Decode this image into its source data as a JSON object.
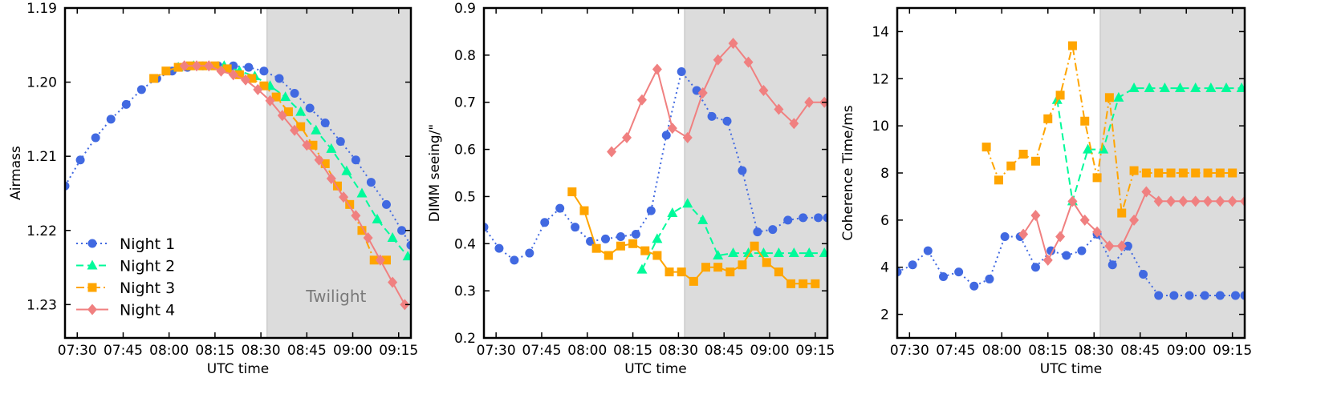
{
  "colors": {
    "night1": "#4169e1",
    "night2": "#00fa9a",
    "night3": "#ffa500",
    "night4": "#f08080",
    "twilight": "#dcdcdc"
  },
  "chart_data": [
    {
      "type": "line",
      "xlabel": "UTC time",
      "ylabel": "Airmass",
      "x_unit": "minutes of UTC time",
      "xlim": [
        "07:26",
        "09:19"
      ],
      "ylim": [
        1.19,
        1.2345
      ],
      "y_inverted": true,
      "xticks": [
        "07:30",
        "07:45",
        "08:00",
        "08:15",
        "08:30",
        "08:45",
        "09:00",
        "09:15"
      ],
      "yticks": [
        "1.19",
        "1.20",
        "1.21",
        "1.22",
        "1.23"
      ],
      "shaded_region": {
        "from": "08:32",
        "to": "09:19",
        "label": "Twilight"
      },
      "legend": {
        "placement": "lower-left"
      },
      "series": [
        {
          "name": "Night 1",
          "style": "dotted",
          "marker": "circle",
          "color": "#4169e1",
          "x": [
            "07:26",
            "07:31",
            "07:36",
            "07:41",
            "07:46",
            "07:51",
            "07:56",
            "08:01",
            "08:06",
            "08:11",
            "08:16",
            "08:21",
            "08:26",
            "08:31",
            "08:36",
            "08:41",
            "08:46",
            "08:51",
            "08:56",
            "09:01",
            "09:06",
            "09:11",
            "09:16",
            "09:19"
          ],
          "y": [
            1.214,
            1.2105,
            1.2075,
            1.205,
            1.203,
            1.201,
            1.1995,
            1.1985,
            1.198,
            1.1978,
            1.1978,
            1.1978,
            1.198,
            1.1985,
            1.1995,
            1.2015,
            1.2035,
            1.2055,
            1.208,
            1.2105,
            1.2135,
            1.2165,
            1.22,
            1.222
          ]
        },
        {
          "name": "Night 2",
          "style": "dashed",
          "marker": "triangle",
          "color": "#00fa9a",
          "x": [
            "08:03",
            "08:08",
            "08:13",
            "08:18",
            "08:23",
            "08:28",
            "08:33",
            "08:38",
            "08:43",
            "08:48",
            "08:53",
            "08:58",
            "09:03",
            "09:08",
            "09:13",
            "09:18"
          ],
          "y": [
            1.198,
            1.1978,
            1.1978,
            1.1978,
            1.1985,
            1.1992,
            1.2005,
            1.202,
            1.204,
            1.2065,
            1.209,
            1.212,
            1.215,
            1.2185,
            1.221,
            1.2235
          ]
        },
        {
          "name": "Night 3",
          "style": "dashdot",
          "marker": "square",
          "color": "#ffa500",
          "x": [
            "07:55",
            "07:59",
            "08:03",
            "08:07",
            "08:11",
            "08:15",
            "08:19",
            "08:23",
            "08:27",
            "08:31",
            "08:35",
            "08:39",
            "08:43",
            "08:47",
            "08:51",
            "08:55",
            "08:59",
            "09:03",
            "09:07",
            "09:11"
          ],
          "y": [
            1.1995,
            1.1985,
            1.198,
            1.1978,
            1.1978,
            1.1978,
            1.1982,
            1.199,
            1.1995,
            1.2005,
            1.202,
            1.204,
            1.206,
            1.2085,
            1.211,
            1.214,
            1.2165,
            1.22,
            1.224,
            1.224
          ]
        },
        {
          "name": "Night 4",
          "style": "solid",
          "marker": "diamond",
          "color": "#f08080",
          "x": [
            "08:05",
            "08:09",
            "08:13",
            "08:17",
            "08:21",
            "08:25",
            "08:29",
            "08:33",
            "08:37",
            "08:41",
            "08:45",
            "08:49",
            "08:53",
            "08:57",
            "09:01",
            "09:05",
            "09:09",
            "09:13",
            "09:17"
          ],
          "y": [
            1.1978,
            1.1978,
            1.1978,
            1.1985,
            1.199,
            1.1997,
            1.201,
            1.2025,
            1.2045,
            1.2065,
            1.2085,
            1.2105,
            1.213,
            1.2155,
            1.218,
            1.221,
            1.224,
            1.227,
            1.23
          ]
        }
      ]
    },
    {
      "type": "line",
      "xlabel": "UTC time",
      "ylabel": "DIMM seeing/\"",
      "x_unit": "minutes of UTC time",
      "xlim": [
        "07:26",
        "09:19"
      ],
      "ylim": [
        0.2,
        0.9
      ],
      "xticks": [
        "07:30",
        "07:45",
        "08:00",
        "08:15",
        "08:30",
        "08:45",
        "09:00",
        "09:15"
      ],
      "yticks": [
        "0.2",
        "0.3",
        "0.4",
        "0.5",
        "0.6",
        "0.7",
        "0.8",
        "0.9"
      ],
      "shaded_region": {
        "from": "08:32",
        "to": "09:19"
      },
      "series": [
        {
          "name": "Night 1",
          "style": "dotted",
          "marker": "circle",
          "color": "#4169e1",
          "x": [
            "07:26",
            "07:31",
            "07:36",
            "07:41",
            "07:46",
            "07:51",
            "07:56",
            "08:01",
            "08:06",
            "08:11",
            "08:16",
            "08:21",
            "08:26",
            "08:31",
            "08:36",
            "08:41",
            "08:46",
            "08:51",
            "08:56",
            "09:01",
            "09:06",
            "09:11",
            "09:16",
            "09:19"
          ],
          "y": [
            0.435,
            0.39,
            0.365,
            0.38,
            0.445,
            0.475,
            0.435,
            0.405,
            0.41,
            0.415,
            0.42,
            0.47,
            0.63,
            0.765,
            0.725,
            0.67,
            0.66,
            0.555,
            0.425,
            0.43,
            0.45,
            0.455,
            0.455,
            0.455
          ]
        },
        {
          "name": "Night 2",
          "style": "dashed",
          "marker": "triangle",
          "color": "#00fa9a",
          "x": [
            "08:18",
            "08:23",
            "08:28",
            "08:33",
            "08:38",
            "08:43",
            "08:48",
            "08:53",
            "08:58",
            "09:03",
            "09:08",
            "09:13",
            "09:18"
          ],
          "y": [
            0.345,
            0.41,
            0.465,
            0.485,
            0.45,
            0.375,
            0.38,
            0.38,
            0.38,
            0.38,
            0.38,
            0.38,
            0.38
          ]
        },
        {
          "name": "Night 3",
          "style": "solid",
          "marker": "square",
          "color": "#ffa500",
          "x": [
            "07:55",
            "07:59",
            "08:03",
            "08:07",
            "08:11",
            "08:15",
            "08:19",
            "08:23",
            "08:27",
            "08:31",
            "08:35",
            "08:39",
            "08:43",
            "08:47",
            "08:51",
            "08:55",
            "08:59",
            "09:03",
            "09:07",
            "09:11",
            "09:15"
          ],
          "y": [
            0.51,
            0.47,
            0.39,
            0.375,
            0.395,
            0.4,
            0.385,
            0.375,
            0.34,
            0.34,
            0.32,
            0.35,
            0.35,
            0.34,
            0.355,
            0.395,
            0.36,
            0.34,
            0.315,
            0.315,
            0.315
          ]
        },
        {
          "name": "Night 4",
          "style": "solid",
          "marker": "diamond",
          "color": "#f08080",
          "x": [
            "08:08",
            "08:13",
            "08:18",
            "08:23",
            "08:28",
            "08:33",
            "08:38",
            "08:43",
            "08:48",
            "08:53",
            "08:58",
            "09:03",
            "09:08",
            "09:13",
            "09:18"
          ],
          "y": [
            0.595,
            0.625,
            0.705,
            0.77,
            0.645,
            0.625,
            0.72,
            0.79,
            0.825,
            0.785,
            0.725,
            0.685,
            0.655,
            0.7,
            0.7
          ]
        }
      ]
    },
    {
      "type": "line",
      "xlabel": "UTC time",
      "ylabel": "Coherence Time/ms",
      "x_unit": "minutes of UTC time",
      "xlim": [
        "07:26",
        "09:19"
      ],
      "ylim": [
        1.0,
        15.0
      ],
      "xticks": [
        "07:30",
        "07:45",
        "08:00",
        "08:15",
        "08:30",
        "08:45",
        "09:00",
        "09:15"
      ],
      "yticks": [
        "2",
        "4",
        "6",
        "8",
        "10",
        "12",
        "14"
      ],
      "shaded_region": {
        "from": "08:32",
        "to": "09:19"
      },
      "series": [
        {
          "name": "Night 1",
          "style": "dotted",
          "marker": "circle",
          "color": "#4169e1",
          "x": [
            "07:26",
            "07:31",
            "07:36",
            "07:41",
            "07:46",
            "07:51",
            "07:56",
            "08:01",
            "08:06",
            "08:11",
            "08:16",
            "08:21",
            "08:26",
            "08:31",
            "08:36",
            "08:41",
            "08:46",
            "08:51",
            "08:56",
            "09:01",
            "09:06",
            "09:11",
            "09:16",
            "09:19"
          ],
          "y": [
            3.8,
            4.1,
            4.7,
            3.6,
            3.8,
            3.2,
            3.5,
            5.3,
            5.3,
            4.0,
            4.7,
            4.5,
            4.7,
            5.4,
            4.1,
            4.9,
            3.7,
            2.8,
            2.8,
            2.8,
            2.8,
            2.8,
            2.8,
            2.8
          ]
        },
        {
          "name": "Night 2",
          "style": "dashed",
          "marker": "triangle",
          "color": "#00fa9a",
          "x": [
            "08:18",
            "08:23",
            "08:28",
            "08:33",
            "08:38",
            "08:43",
            "08:48",
            "08:53",
            "08:58",
            "09:03",
            "09:08",
            "09:13",
            "09:18"
          ],
          "y": [
            11.1,
            6.8,
            9.0,
            9.0,
            11.2,
            11.6,
            11.6,
            11.6,
            11.6,
            11.6,
            11.6,
            11.6,
            11.6
          ]
        },
        {
          "name": "Night 3",
          "style": "dashdot",
          "marker": "square",
          "color": "#ffa500",
          "x": [
            "07:55",
            "07:59",
            "08:03",
            "08:07",
            "08:11",
            "08:15",
            "08:19",
            "08:23",
            "08:27",
            "08:31",
            "08:35",
            "08:39",
            "08:43",
            "08:47",
            "08:51",
            "08:55",
            "08:59",
            "09:03",
            "09:07",
            "09:11",
            "09:15"
          ],
          "y": [
            9.1,
            7.7,
            8.3,
            8.8,
            8.5,
            10.3,
            11.3,
            13.4,
            10.2,
            7.8,
            11.2,
            6.3,
            8.1,
            8.0,
            8.0,
            8.0,
            8.0,
            8.0,
            8.0,
            8.0,
            8.0
          ]
        },
        {
          "name": "Night 4",
          "style": "solid",
          "marker": "diamond",
          "color": "#f08080",
          "x": [
            "08:07",
            "08:11",
            "08:15",
            "08:19",
            "08:23",
            "08:27",
            "08:31",
            "08:35",
            "08:39",
            "08:43",
            "08:47",
            "08:51",
            "08:55",
            "08:59",
            "09:03",
            "09:07",
            "09:11",
            "09:15",
            "09:19"
          ],
          "y": [
            5.4,
            6.2,
            4.3,
            5.3,
            6.8,
            6.0,
            5.5,
            4.9,
            4.9,
            6.0,
            7.2,
            6.8,
            6.8,
            6.8,
            6.8,
            6.8,
            6.8,
            6.8,
            6.8
          ]
        }
      ]
    }
  ]
}
